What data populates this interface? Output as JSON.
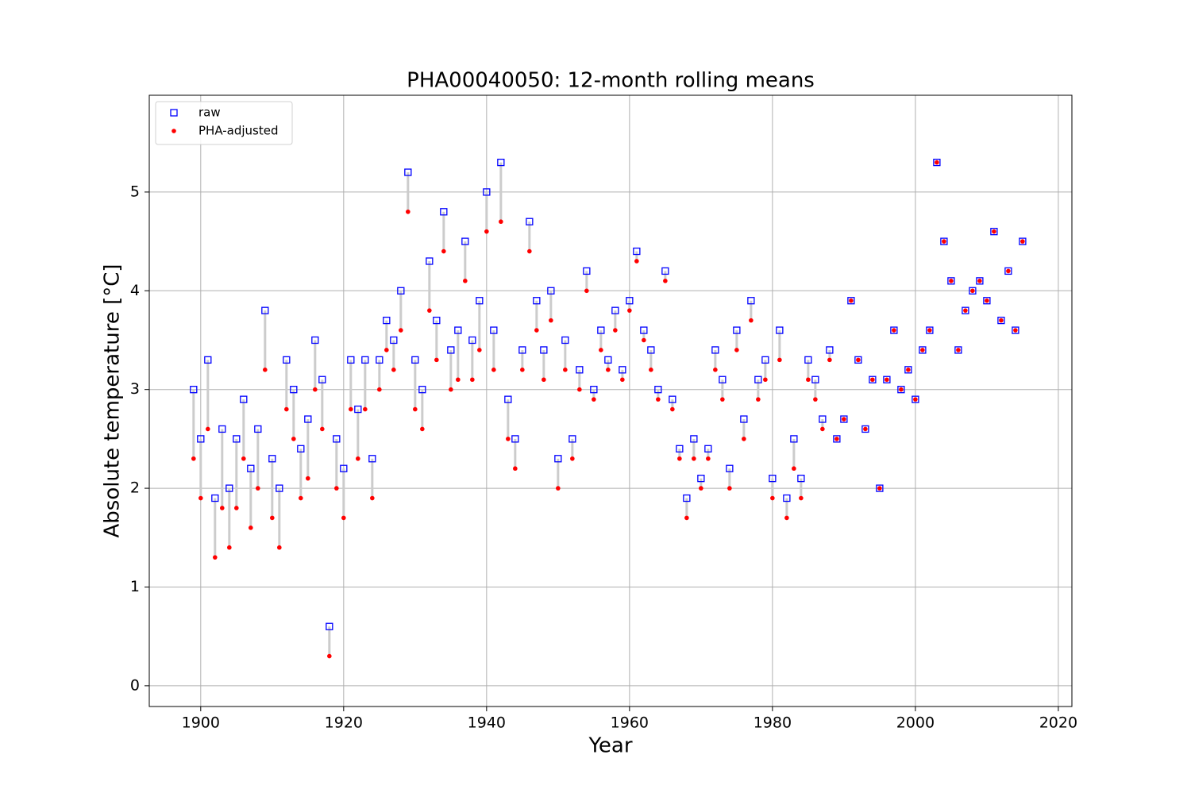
{
  "chart_data": {
    "type": "scatter",
    "title": "PHA00040050: 12-month rolling means",
    "xlabel": "Year",
    "ylabel": "Absolute temperature [°C]",
    "x": [
      1899,
      1900,
      1901,
      1902,
      1903,
      1904,
      1905,
      1906,
      1907,
      1908,
      1909,
      1910,
      1911,
      1912,
      1913,
      1914,
      1915,
      1916,
      1917,
      1918,
      1919,
      1920,
      1921,
      1922,
      1923,
      1924,
      1925,
      1926,
      1927,
      1928,
      1929,
      1930,
      1931,
      1932,
      1933,
      1934,
      1935,
      1936,
      1937,
      1938,
      1939,
      1940,
      1941,
      1942,
      1943,
      1944,
      1945,
      1946,
      1947,
      1948,
      1949,
      1950,
      1951,
      1952,
      1953,
      1954,
      1955,
      1956,
      1957,
      1958,
      1959,
      1960,
      1961,
      1962,
      1963,
      1964,
      1965,
      1966,
      1967,
      1968,
      1969,
      1970,
      1971,
      1972,
      1973,
      1974,
      1975,
      1976,
      1977,
      1978,
      1979,
      1980,
      1981,
      1982,
      1983,
      1984,
      1985,
      1986,
      1987,
      1988,
      1989,
      1990,
      1991,
      1992,
      1993,
      1994,
      1995,
      1996,
      1997,
      1998,
      1999,
      2000,
      2001,
      2002,
      2003,
      2004,
      2005,
      2006,
      2007,
      2008,
      2009,
      2010,
      2011,
      2012,
      2013,
      2014,
      2015
    ],
    "series": [
      {
        "name": "raw",
        "color": "#0000ff",
        "marker": "square",
        "values": [
          3.0,
          2.5,
          3.3,
          1.9,
          2.6,
          2.0,
          2.5,
          2.9,
          2.2,
          2.6,
          3.8,
          2.3,
          2.0,
          3.3,
          3.0,
          2.4,
          2.7,
          3.5,
          3.1,
          0.6,
          2.5,
          2.2,
          3.3,
          2.8,
          3.3,
          2.3,
          3.3,
          3.7,
          3.5,
          4.0,
          5.2,
          3.3,
          3.0,
          4.3,
          3.7,
          4.8,
          3.4,
          3.6,
          4.5,
          3.5,
          3.9,
          5.0,
          3.6,
          5.3,
          2.9,
          2.5,
          3.4,
          4.7,
          3.9,
          3.4,
          4.0,
          2.3,
          3.5,
          2.5,
          3.2,
          4.2,
          3.0,
          3.6,
          3.3,
          3.8,
          3.2,
          3.9,
          4.4,
          3.6,
          3.4,
          3.0,
          4.2,
          2.9,
          2.4,
          1.9,
          2.5,
          2.1,
          2.4,
          3.4,
          3.1,
          2.2,
          3.6,
          2.7,
          3.9,
          3.1,
          3.3,
          2.1,
          3.6,
          1.9,
          2.5,
          2.1,
          3.3,
          3.1,
          2.7,
          3.4,
          2.5,
          2.7,
          3.9,
          3.3,
          2.6,
          3.1,
          2.0,
          3.1,
          3.6,
          3.0,
          3.2,
          2.9,
          3.4,
          3.6,
          5.3,
          4.5,
          4.1,
          3.4,
          3.8,
          4.0,
          4.1,
          3.9,
          4.6,
          3.7,
          4.2,
          3.6,
          4.5
        ]
      },
      {
        "name": "PHA-adjusted",
        "color": "#ff0000",
        "marker": "circle",
        "values": [
          2.3,
          1.9,
          2.6,
          1.3,
          1.8,
          1.4,
          1.8,
          2.3,
          1.6,
          2.0,
          3.2,
          1.7,
          1.4,
          2.8,
          2.5,
          1.9,
          2.1,
          3.0,
          2.6,
          0.3,
          2.0,
          1.7,
          2.8,
          2.3,
          2.8,
          1.9,
          3.0,
          3.4,
          3.2,
          3.6,
          4.8,
          2.8,
          2.6,
          3.8,
          3.3,
          4.4,
          3.0,
          3.1,
          4.1,
          3.1,
          3.4,
          4.6,
          3.2,
          4.7,
          2.5,
          2.2,
          3.2,
          4.4,
          3.6,
          3.1,
          3.7,
          2.0,
          3.2,
          2.3,
          3.0,
          4.0,
          2.9,
          3.4,
          3.2,
          3.6,
          3.1,
          3.8,
          4.3,
          3.5,
          3.2,
          2.9,
          4.1,
          2.8,
          2.3,
          1.7,
          2.3,
          2.0,
          2.3,
          3.2,
          2.9,
          2.0,
          3.4,
          2.5,
          3.7,
          2.9,
          3.1,
          1.9,
          3.3,
          1.7,
          2.2,
          1.9,
          3.1,
          2.9,
          2.6,
          3.3,
          2.5,
          2.7,
          3.9,
          3.3,
          2.6,
          3.1,
          2.0,
          3.1,
          3.6,
          3.0,
          3.2,
          2.9,
          3.4,
          3.6,
          5.3,
          4.5,
          4.1,
          3.4,
          3.8,
          4.0,
          4.1,
          3.9,
          4.6,
          3.7,
          4.2,
          3.6,
          4.5
        ]
      }
    ],
    "xlim": [
      1892.8,
      2021.9
    ],
    "ylim": [
      -0.21,
      5.98
    ],
    "xticks": [
      1900,
      1920,
      1940,
      1960,
      1980,
      2000,
      2020
    ],
    "yticks": [
      0,
      1,
      2,
      3,
      4,
      5
    ],
    "grid": true,
    "legend": "upper left"
  }
}
